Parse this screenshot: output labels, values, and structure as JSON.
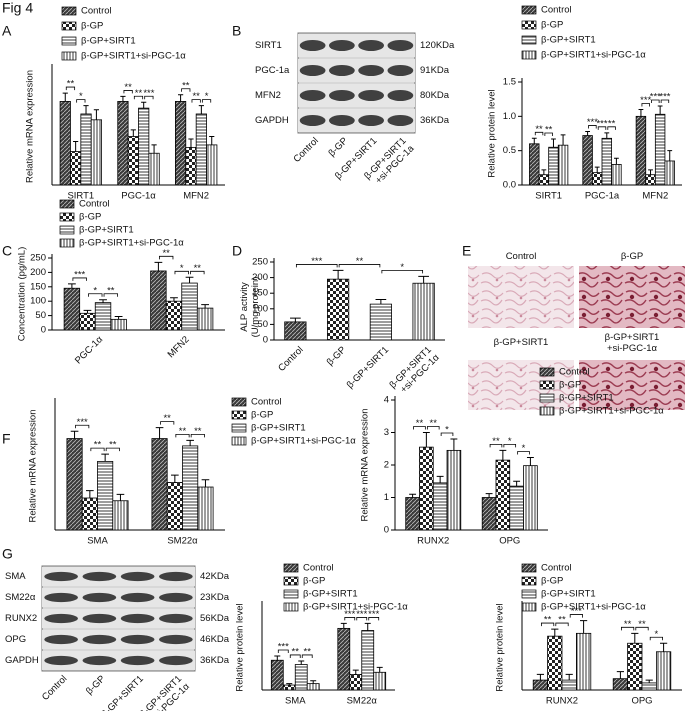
{
  "title": "Fig 4",
  "panel_labels": [
    "A",
    "B",
    "C",
    "D",
    "E",
    "F",
    "G"
  ],
  "chart_data": [
    {
      "type": "bar",
      "ylabel": "Relative mRNA expression",
      "categories": [
        "SIRT1",
        "PGC-1α",
        "MFN2"
      ],
      "ylim": [
        0,
        1.4
      ],
      "series": [
        {
          "name": "Control",
          "values": [
            1.0,
            1.0,
            1.0
          ],
          "errors": [
            0.1,
            0.06,
            0.08
          ]
        },
        {
          "name": "β-GP",
          "values": [
            0.4,
            0.58,
            0.45
          ],
          "errors": [
            0.12,
            0.08,
            0.1
          ]
        },
        {
          "name": "β-GP+SIRT1",
          "values": [
            0.85,
            0.92,
            0.85
          ],
          "errors": [
            0.1,
            0.07,
            0.1
          ]
        },
        {
          "name": "β-GP+SIRT1+si-PGC-1α",
          "values": [
            0.78,
            0.38,
            0.48
          ],
          "errors": [
            0.12,
            0.1,
            0.1
          ]
        }
      ],
      "annotations": [
        {
          "text": "**",
          "category": 0,
          "pair": [
            0,
            1
          ]
        },
        {
          "text": "*",
          "category": 0,
          "pair": [
            1,
            2
          ]
        },
        {
          "text": "**",
          "category": 1,
          "pair": [
            0,
            1
          ]
        },
        {
          "text": "**",
          "category": 1,
          "pair": [
            1,
            2
          ]
        },
        {
          "text": "***",
          "category": 1,
          "pair": [
            2,
            3
          ]
        },
        {
          "text": "**",
          "category": 2,
          "pair": [
            0,
            1
          ]
        },
        {
          "text": "**",
          "category": 2,
          "pair": [
            1,
            2
          ]
        },
        {
          "text": "*",
          "category": 2,
          "pair": [
            2,
            3
          ]
        }
      ]
    },
    {
      "type": "bar",
      "ylabel": "Relative protein level",
      "categories": [
        "SIRT1",
        "PGC-1a",
        "MFN2"
      ],
      "ylim": [
        0,
        1.5
      ],
      "yticks": [
        {
          "value": 0,
          "label": "0.0"
        },
        0.5,
        {
          "value": 1,
          "label": "1.0"
        },
        1.5
      ],
      "series": [
        {
          "name": "Control",
          "values": [
            0.6,
            0.72,
            1.0
          ],
          "errors": [
            0.08,
            0.06,
            0.1
          ]
        },
        {
          "name": "β-GP",
          "values": [
            0.15,
            0.18,
            0.15
          ],
          "errors": [
            0.07,
            0.08,
            0.07
          ]
        },
        {
          "name": "β-GP+SIRT1",
          "values": [
            0.55,
            0.68,
            1.03
          ],
          "errors": [
            0.12,
            0.08,
            0.12
          ]
        },
        {
          "name": "β-GP+SIRT1+si-PGC-1α",
          "values": [
            0.58,
            0.3,
            0.35
          ],
          "errors": [
            0.15,
            0.09,
            0.15
          ]
        }
      ],
      "annotations": [
        {
          "text": "**",
          "category": 0,
          "pair": [
            0,
            1
          ]
        },
        {
          "text": "**",
          "category": 0,
          "pair": [
            1,
            2
          ]
        },
        {
          "text": "***",
          "category": 1,
          "pair": [
            0,
            1
          ]
        },
        {
          "text": "***",
          "category": 1,
          "pair": [
            1,
            2
          ]
        },
        {
          "text": "**",
          "category": 1,
          "pair": [
            2,
            3
          ]
        },
        {
          "text": "***",
          "category": 2,
          "pair": [
            0,
            1
          ]
        },
        {
          "text": "***",
          "category": 2,
          "pair": [
            1,
            2
          ]
        },
        {
          "text": "***",
          "category": 2,
          "pair": [
            2,
            3
          ]
        }
      ]
    },
    {
      "type": "bar",
      "ylabel": "Concentration (pg/mL)",
      "categories": [
        "PGC-1α",
        "MFN2"
      ],
      "ylim": [
        0,
        250
      ],
      "yticks": [
        0,
        50,
        100,
        150,
        200,
        250
      ],
      "series": [
        {
          "name": "Control",
          "values": [
            145,
            205
          ],
          "errors": [
            15,
            30
          ]
        },
        {
          "name": "β-GP",
          "values": [
            58,
            100
          ],
          "errors": [
            10,
            12
          ]
        },
        {
          "name": "β-GP+SIRT1",
          "values": [
            95,
            163
          ],
          "errors": [
            10,
            20
          ]
        },
        {
          "name": "β-GP+SIRT1+si-PGC-1α",
          "values": [
            37,
            76
          ],
          "errors": [
            10,
            12
          ]
        }
      ],
      "annotations": [
        {
          "text": "***",
          "category": 0,
          "pair": [
            0,
            1
          ]
        },
        {
          "text": "*",
          "category": 0,
          "pair": [
            1,
            2
          ]
        },
        {
          "text": "**",
          "category": 0,
          "pair": [
            2,
            3
          ]
        },
        {
          "text": "**",
          "category": 1,
          "pair": [
            0,
            1
          ]
        },
        {
          "text": "*",
          "category": 1,
          "pair": [
            1,
            2
          ]
        },
        {
          "text": "**",
          "category": 1,
          "pair": [
            2,
            3
          ]
        }
      ]
    },
    {
      "type": "bar",
      "ylabel": [
        "ALP activity",
        "(U/mg protein)"
      ],
      "categories": [
        [
          "Control"
        ],
        [
          "β-GP"
        ],
        [
          "β-GP+SIRT1"
        ],
        [
          "β-GP+SIRT1",
          "+si-PGC-1α"
        ]
      ],
      "values": [
        58,
        195,
        115,
        182
      ],
      "errors": [
        12,
        28,
        15,
        22
      ],
      "ylim": [
        0,
        250
      ],
      "yticks": [
        0,
        50,
        100,
        150,
        200,
        250
      ],
      "annotations": [
        {
          "text": "***",
          "pair": [
            0,
            1
          ]
        },
        {
          "text": "**",
          "pair": [
            1,
            2
          ]
        },
        {
          "text": "*",
          "pair": [
            2,
            3
          ]
        }
      ]
    },
    {
      "type": "bar",
      "ylabel": "Relative mRNA expression",
      "categories": [
        "SMA",
        "SM22α"
      ],
      "ylim": [
        0,
        1.4
      ],
      "series": [
        {
          "name": "Control",
          "values": [
            1.0,
            1.0
          ],
          "errors": [
            0.08,
            0.12
          ]
        },
        {
          "name": "β-GP",
          "values": [
            0.35,
            0.52
          ],
          "errors": [
            0.08,
            0.08
          ]
        },
        {
          "name": "β-GP+SIRT1",
          "values": [
            0.75,
            0.92
          ],
          "errors": [
            0.08,
            0.06
          ]
        },
        {
          "name": "β-GP+SIRT1+si-PGC-1α",
          "values": [
            0.32,
            0.47
          ],
          "errors": [
            0.07,
            0.08
          ]
        }
      ],
      "annotations": [
        {
          "text": "***",
          "category": 0,
          "pair": [
            0,
            1
          ]
        },
        {
          "text": "**",
          "category": 0,
          "pair": [
            1,
            2
          ]
        },
        {
          "text": "**",
          "category": 0,
          "pair": [
            2,
            3
          ]
        },
        {
          "text": "**",
          "category": 1,
          "pair": [
            0,
            1
          ]
        },
        {
          "text": "**",
          "category": 1,
          "pair": [
            1,
            2
          ]
        },
        {
          "text": "**",
          "category": 1,
          "pair": [
            2,
            3
          ]
        }
      ]
    },
    {
      "type": "bar",
      "ylabel": "Relative mRNA expression",
      "categories": [
        "RUNX2",
        "OPG"
      ],
      "ylim": [
        0,
        4
      ],
      "yticks": [
        0,
        1,
        2,
        3,
        4
      ],
      "series": [
        {
          "name": "Control",
          "values": [
            1.0,
            1.0
          ],
          "errors": [
            0.1,
            0.12
          ]
        },
        {
          "name": "β-GP",
          "values": [
            2.55,
            2.15
          ],
          "errors": [
            0.45,
            0.3
          ]
        },
        {
          "name": "β-GP+SIRT1",
          "values": [
            1.45,
            1.35
          ],
          "errors": [
            0.2,
            0.15
          ]
        },
        {
          "name": "β-GP+SIRT1+si-PGC-1α",
          "values": [
            2.45,
            1.98
          ],
          "errors": [
            0.35,
            0.25
          ]
        }
      ],
      "annotations": [
        {
          "text": "**",
          "category": 0,
          "pair": [
            0,
            1
          ]
        },
        {
          "text": "**",
          "category": 0,
          "pair": [
            1,
            2
          ]
        },
        {
          "text": "*",
          "category": 0,
          "pair": [
            2,
            3
          ]
        },
        {
          "text": "**",
          "category": 1,
          "pair": [
            0,
            1
          ]
        },
        {
          "text": "*",
          "category": 1,
          "pair": [
            1,
            2
          ]
        },
        {
          "text": "*",
          "category": 1,
          "pair": [
            2,
            3
          ]
        }
      ]
    },
    {
      "type": "bar",
      "ylabel": "Relative protein level",
      "categories": [
        "SMA",
        "SM22α"
      ],
      "ylim": [
        0,
        1.2
      ],
      "series": [
        {
          "name": "Control",
          "values": [
            0.42,
            0.87
          ],
          "errors": [
            0.06,
            0.07
          ]
        },
        {
          "name": "β-GP",
          "values": [
            0.07,
            0.22
          ],
          "errors": [
            0.02,
            0.06
          ]
        },
        {
          "name": "β-GP+SIRT1",
          "values": [
            0.36,
            0.84
          ],
          "errors": [
            0.05,
            0.1
          ]
        },
        {
          "name": "β-GP+SIRT1+si-PGC-1α",
          "values": [
            0.09,
            0.25
          ],
          "errors": [
            0.04,
            0.07
          ]
        }
      ],
      "annotations": [
        {
          "text": "***",
          "category": 0,
          "pair": [
            0,
            1
          ]
        },
        {
          "text": "**",
          "category": 0,
          "pair": [
            1,
            2
          ]
        },
        {
          "text": "**",
          "category": 0,
          "pair": [
            2,
            3
          ]
        },
        {
          "text": "***",
          "category": 1,
          "pair": [
            0,
            1
          ]
        },
        {
          "text": "***",
          "category": 1,
          "pair": [
            1,
            2
          ]
        },
        {
          "text": "***",
          "category": 1,
          "pair": [
            2,
            3
          ]
        }
      ]
    },
    {
      "type": "bar",
      "ylabel": "Relative protein level",
      "categories": [
        "RUNX2",
        "OPG"
      ],
      "ylim": [
        0,
        0.6
      ],
      "series": [
        {
          "name": "Control",
          "values": [
            0.07,
            0.08
          ],
          "errors": [
            0.04,
            0.05
          ]
        },
        {
          "name": "β-GP",
          "values": [
            0.38,
            0.33
          ],
          "errors": [
            0.05,
            0.07
          ]
        },
        {
          "name": "β-GP+SIRT1",
          "values": [
            0.07,
            0.05
          ],
          "errors": [
            0.04,
            0.02
          ]
        },
        {
          "name": "β-GP+SIRT1+si-PGC-1α",
          "values": [
            0.4,
            0.27
          ],
          "errors": [
            0.09,
            0.06
          ]
        }
      ],
      "annotations": [
        {
          "text": "**",
          "category": 0,
          "pair": [
            0,
            1
          ]
        },
        {
          "text": "**",
          "category": 0,
          "pair": [
            1,
            2
          ]
        },
        {
          "text": "***",
          "category": 0,
          "pair": [
            2,
            3
          ]
        },
        {
          "text": "**",
          "category": 1,
          "pair": [
            0,
            1
          ]
        },
        {
          "text": "**",
          "category": 1,
          "pair": [
            1,
            2
          ]
        },
        {
          "text": "*",
          "category": 1,
          "pair": [
            2,
            3
          ]
        }
      ]
    }
  ],
  "blots": [
    {
      "rows": [
        {
          "protein": "SIRT1",
          "size": "120KDa"
        },
        {
          "protein": "PGC-1a",
          "size": "91KDa"
        },
        {
          "protein": "MFN2",
          "size": "80KDa"
        },
        {
          "protein": "GAPDH",
          "size": "36KDa"
        }
      ],
      "lanes": [
        [
          "Control"
        ],
        [
          "β-GP"
        ],
        [
          "β-GP+SIRT1"
        ],
        [
          "β-GP+SIRT1",
          "+si-PGC-1a"
        ]
      ]
    },
    {
      "rows": [
        {
          "protein": "SMA",
          "size": "42KDa"
        },
        {
          "protein": "SM22α",
          "size": "23KDa"
        },
        {
          "protein": "RUNX2",
          "size": "56KDa"
        },
        {
          "protein": "OPG",
          "size": "46KDa"
        },
        {
          "protein": "GAPDH",
          "size": "36KDa"
        }
      ],
      "lanes": [
        [
          "Control"
        ],
        [
          "β-GP"
        ],
        [
          "β-GP+SIRT1"
        ],
        [
          "β-GP+SIRT1",
          "+si-PGC-1α"
        ]
      ]
    }
  ],
  "micrographs": {
    "labels": [
      [
        "Control"
      ],
      [
        "β-GP"
      ],
      [
        "β-GP+SIRT1"
      ],
      [
        "β-GP+SIRT1",
        "+si-PGC-1α"
      ]
    ]
  }
}
